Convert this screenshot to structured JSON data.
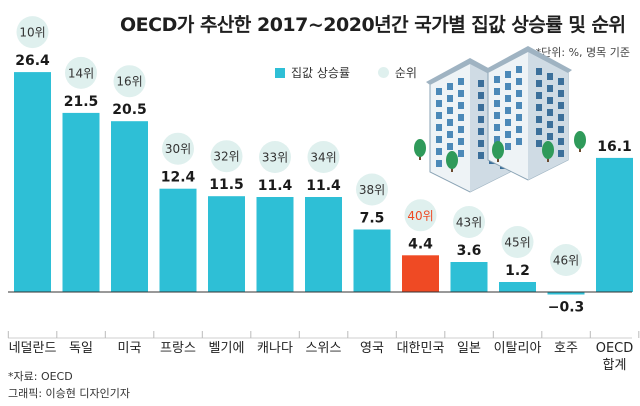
{
  "title": "OECD가 추산한 2017~2020년간 국가별 집값 상승률 및 순위",
  "unit_note": "*단위: %, 명목 기준",
  "legend": {
    "bar_label": "집값 상승률",
    "rank_label": "순위"
  },
  "source": "*자료: OECD",
  "credit": "그래픽: 이승현 디자인기자",
  "colors": {
    "bar": "#2ebfd6",
    "highlight": "#ef4a24",
    "rank_bubble": "#dff0ee",
    "highlight_rank_text": "#ef4a24",
    "baseline": "#333333"
  },
  "illustration": "apartment-buildings-with-trees",
  "chart_data": {
    "type": "bar",
    "categories": [
      "네덜란드",
      "독일",
      "미국",
      "프랑스",
      "벨기에",
      "캐나다",
      "스위스",
      "영국",
      "대한민국",
      "일본",
      "이탈리아",
      "호주",
      "OECD\n합계"
    ],
    "values": [
      26.4,
      21.5,
      20.5,
      12.4,
      11.5,
      11.4,
      11.4,
      7.5,
      4.4,
      3.6,
      1.2,
      -0.3,
      16.1
    ],
    "value_labels": [
      "26.4",
      "21.5",
      "20.5",
      "12.4",
      "11.5",
      "11.4",
      "11.4",
      "7.5",
      "4.4",
      "3.6",
      "1.2",
      "−0.3",
      "16.1"
    ],
    "ranks": [
      "10위",
      "14위",
      "16위",
      "30위",
      "32위",
      "33위",
      "34위",
      "38위",
      "40위",
      "43위",
      "45위",
      "46위",
      ""
    ],
    "highlight": "대한민국",
    "ylim": [
      -0.3,
      26.4
    ],
    "grid": false,
    "legend_position": "top"
  }
}
